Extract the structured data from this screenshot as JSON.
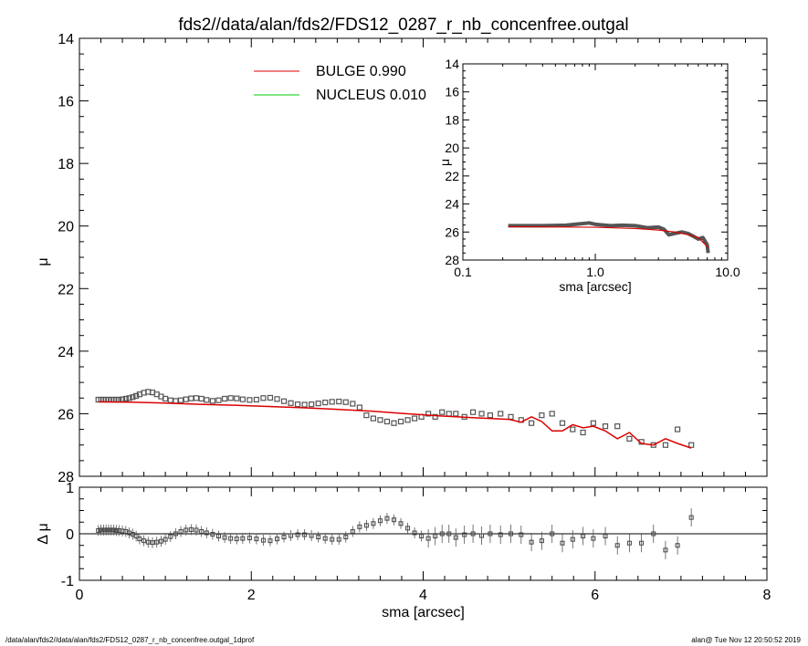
{
  "title": "fds2//data/alan/fds2/FDS12_0287_r_nb_concenfree.outgal",
  "footer_left": "/data/alan/fds2//data/alan/fds2/FDS12_0287_r_nb_concenfree.outgal_1dprof",
  "footer_right": "alan@  Tue Nov 12 20:50:52 2019",
  "colors": {
    "bulge": "#dd0000",
    "nucleus": "#00cc00",
    "data": "#555555",
    "axes": "#000000"
  },
  "chart_data": [
    {
      "id": "main-profile",
      "type": "scatter",
      "xlabel": "",
      "ylabel": "μ",
      "xlim": [
        0,
        8
      ],
      "ylim": [
        28,
        14
      ],
      "y_ticks": [
        "14",
        "16",
        "18",
        "20",
        "22",
        "24",
        "26",
        "28"
      ],
      "legend": [
        {
          "name": "BULGE  0.990",
          "color": "#dd0000"
        },
        {
          "name": "NUCLEUS  0.010",
          "color": "#00cc00"
        }
      ],
      "legend_position": "top-left",
      "series": [
        {
          "name": "data",
          "marker": "square",
          "x": [
            0.22,
            0.25,
            0.28,
            0.31,
            0.34,
            0.37,
            0.4,
            0.43,
            0.46,
            0.5,
            0.54,
            0.58,
            0.62,
            0.66,
            0.7,
            0.75,
            0.8,
            0.85,
            0.9,
            0.95,
            1.0,
            1.06,
            1.12,
            1.18,
            1.24,
            1.3,
            1.36,
            1.42,
            1.48,
            1.55,
            1.62,
            1.69,
            1.76,
            1.83,
            1.9,
            1.98,
            2.06,
            2.14,
            2.22,
            2.3,
            2.38,
            2.46,
            2.54,
            2.62,
            2.7,
            2.78,
            2.86,
            2.94,
            3.02,
            3.1,
            3.18,
            3.26,
            3.34,
            3.42,
            3.5,
            3.58,
            3.66,
            3.74,
            3.82,
            3.9,
            3.98,
            4.06,
            4.14,
            4.22,
            4.3,
            4.38,
            4.48,
            4.58,
            4.68,
            4.78,
            4.9,
            5.02,
            5.14,
            5.26,
            5.38,
            5.5,
            5.62,
            5.74,
            5.86,
            5.98,
            6.12,
            6.26,
            6.4,
            6.54,
            6.68,
            6.82,
            6.96,
            7.12
          ],
          "y": [
            25.55,
            25.55,
            25.55,
            25.55,
            25.55,
            25.55,
            25.55,
            25.55,
            25.55,
            25.54,
            25.52,
            25.5,
            25.47,
            25.43,
            25.38,
            25.33,
            25.3,
            25.32,
            25.38,
            25.45,
            25.52,
            25.57,
            25.59,
            25.57,
            25.54,
            25.51,
            25.5,
            25.52,
            25.56,
            25.59,
            25.57,
            25.52,
            25.5,
            25.51,
            25.54,
            25.56,
            25.55,
            25.5,
            25.49,
            25.53,
            25.6,
            25.66,
            25.7,
            25.71,
            25.7,
            25.67,
            25.64,
            25.62,
            25.61,
            25.63,
            25.68,
            25.8,
            26.05,
            26.15,
            26.2,
            26.25,
            26.3,
            26.25,
            26.2,
            26.15,
            26.1,
            26.0,
            26.1,
            25.95,
            26.0,
            26.0,
            26.1,
            25.95,
            26.0,
            26.05,
            26.0,
            26.1,
            26.2,
            26.3,
            26.05,
            26.0,
            26.3,
            26.5,
            26.6,
            26.3,
            26.4,
            26.4,
            26.8,
            26.9,
            27.0,
            27.0,
            26.5,
            27.0
          ]
        },
        {
          "name": "BULGE  0.990",
          "color": "#dd0000",
          "x": [
            0.22,
            0.6,
            1.0,
            1.4,
            1.8,
            2.2,
            2.6,
            3.0,
            3.4,
            3.8,
            4.2,
            4.6,
            5.0,
            5.14,
            5.26,
            5.38,
            5.5,
            5.62,
            5.74,
            5.86,
            5.98,
            6.12,
            6.26,
            6.4,
            6.54,
            6.68,
            6.82,
            6.96,
            7.12
          ],
          "y": [
            25.62,
            25.63,
            25.66,
            25.7,
            25.73,
            25.77,
            25.81,
            25.86,
            25.92,
            26.0,
            26.07,
            26.13,
            26.18,
            26.27,
            26.1,
            26.25,
            26.55,
            26.55,
            26.35,
            26.45,
            26.4,
            26.55,
            26.8,
            26.6,
            26.95,
            27.0,
            26.8,
            26.95,
            27.1
          ]
        }
      ]
    },
    {
      "id": "inset-log",
      "type": "line",
      "xlabel": "sma [arcsec]",
      "ylabel": "μ",
      "x_scale": "log",
      "xlim": [
        0.1,
        10.0
      ],
      "ylim": [
        28,
        14
      ],
      "x_ticks": [
        "0.1",
        "1.0",
        "10.0"
      ],
      "y_ticks": [
        "14",
        "16",
        "18",
        "20",
        "22",
        "24",
        "26",
        "28"
      ],
      "series": [
        {
          "name": "data",
          "x": [
            0.22,
            0.4,
            0.6,
            0.8,
            0.9,
            1.0,
            1.3,
            1.6,
            2.0,
            2.5,
            3.0,
            3.3,
            3.6,
            4.0,
            4.5,
            5.0,
            5.5,
            6.0,
            6.5,
            7.0,
            7.12
          ],
          "y": [
            25.55,
            25.55,
            25.52,
            25.4,
            25.35,
            25.45,
            25.55,
            25.52,
            25.55,
            25.7,
            25.65,
            25.8,
            26.2,
            26.1,
            26.0,
            26.1,
            26.3,
            26.5,
            26.4,
            26.9,
            27.5
          ]
        },
        {
          "name": "BULGE  0.990",
          "color": "#dd0000",
          "x": [
            0.22,
            1.0,
            2.0,
            3.0,
            4.0,
            5.0,
            6.0,
            7.12
          ],
          "y": [
            25.62,
            25.66,
            25.75,
            25.86,
            26.0,
            26.18,
            26.4,
            27.1
          ]
        }
      ]
    },
    {
      "id": "residuals",
      "type": "scatter",
      "xlabel": "sma [arcsec]",
      "ylabel": "Δ μ",
      "xlim": [
        0,
        8
      ],
      "ylim": [
        -1,
        1
      ],
      "x_ticks": [
        "0",
        "2",
        "4",
        "6",
        "8"
      ],
      "y_ticks": [
        "1",
        "0",
        "-1"
      ],
      "series": [
        {
          "name": "residual",
          "x": [
            0.22,
            0.25,
            0.28,
            0.31,
            0.34,
            0.37,
            0.4,
            0.43,
            0.46,
            0.5,
            0.54,
            0.58,
            0.62,
            0.66,
            0.7,
            0.75,
            0.8,
            0.85,
            0.9,
            0.95,
            1.0,
            1.06,
            1.12,
            1.18,
            1.24,
            1.3,
            1.36,
            1.42,
            1.48,
            1.55,
            1.62,
            1.69,
            1.76,
            1.83,
            1.9,
            1.98,
            2.06,
            2.14,
            2.22,
            2.3,
            2.38,
            2.46,
            2.54,
            2.62,
            2.7,
            2.78,
            2.86,
            2.94,
            3.02,
            3.1,
            3.18,
            3.26,
            3.34,
            3.42,
            3.5,
            3.58,
            3.66,
            3.74,
            3.82,
            3.9,
            3.98,
            4.06,
            4.14,
            4.22,
            4.3,
            4.38,
            4.48,
            4.58,
            4.68,
            4.78,
            4.9,
            5.02,
            5.14,
            5.26,
            5.38,
            5.5,
            5.62,
            5.74,
            5.86,
            5.98,
            6.12,
            6.26,
            6.4,
            6.54,
            6.68,
            6.82,
            6.96,
            7.12
          ],
          "y": [
            0.07,
            0.08,
            0.08,
            0.08,
            0.08,
            0.08,
            0.08,
            0.07,
            0.07,
            0.06,
            0.05,
            0.02,
            -0.01,
            -0.05,
            -0.11,
            -0.15,
            -0.18,
            -0.19,
            -0.18,
            -0.16,
            -0.12,
            -0.06,
            0.0,
            0.05,
            0.08,
            0.09,
            0.08,
            0.05,
            0.02,
            -0.01,
            -0.05,
            -0.08,
            -0.1,
            -0.11,
            -0.1,
            -0.09,
            -0.11,
            -0.14,
            -0.15,
            -0.11,
            -0.07,
            -0.04,
            -0.02,
            -0.02,
            -0.04,
            -0.07,
            -0.1,
            -0.12,
            -0.12,
            -0.07,
            0.05,
            0.15,
            0.18,
            0.22,
            0.28,
            0.33,
            0.3,
            0.22,
            0.12,
            0.02,
            -0.05,
            -0.1,
            -0.05,
            0.0,
            0.0,
            -0.08,
            -0.02,
            0.0,
            -0.04,
            0.0,
            -0.02,
            0.0,
            -0.02,
            -0.18,
            -0.15,
            0.0,
            -0.2,
            -0.12,
            -0.05,
            -0.1,
            -0.05,
            -0.25,
            -0.2,
            -0.2,
            0.0,
            -0.35,
            -0.25,
            0.35
          ]
        }
      ]
    }
  ]
}
